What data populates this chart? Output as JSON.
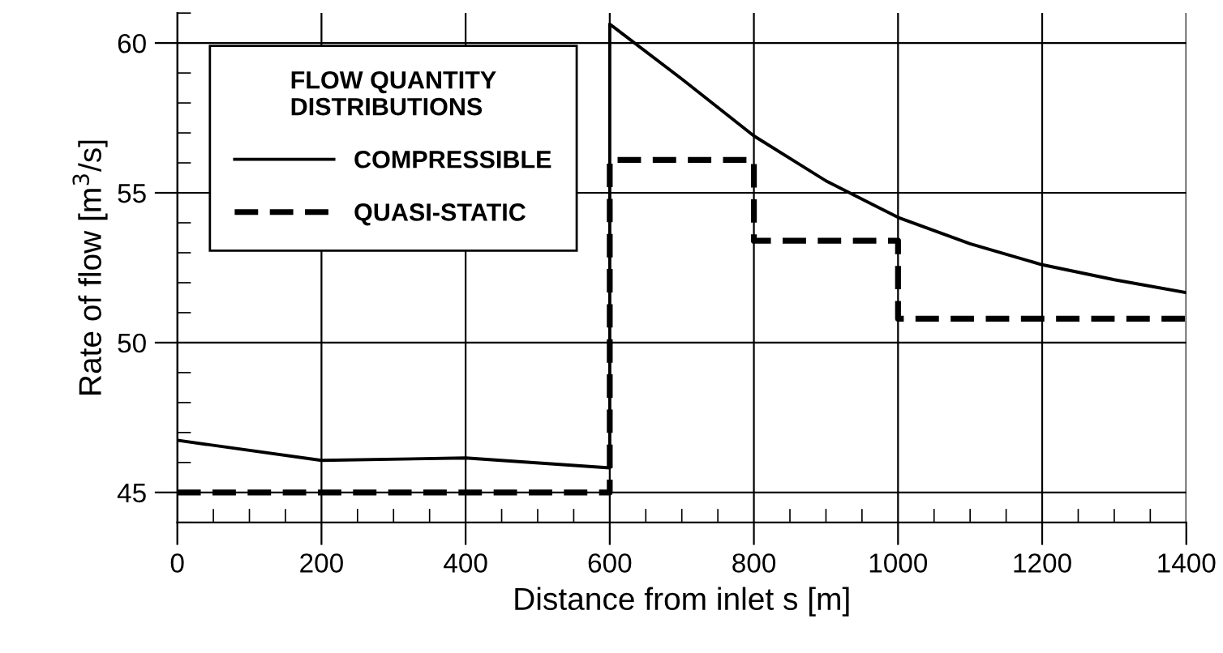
{
  "chart_data": {
    "type": "line",
    "xlabel": "Distance from inlet s [m]",
    "ylabel": "Rate of flow [m$^{3}$/s]",
    "legend_title": "FLOW QUANTITY\nDISTRIBUTIONS",
    "legend": "top left",
    "grid": true,
    "xlim": [
      0,
      1400
    ],
    "xticks": [
      0,
      200,
      400,
      600,
      800,
      1000,
      1200,
      1400
    ],
    "ylim": [
      44,
      61
    ],
    "yticks": [
      45,
      50,
      55,
      60
    ],
    "series": [
      {
        "name": "COMPRESSIBLE",
        "color": "#000000",
        "line_style": "solid",
        "x": [
          0,
          200,
          400,
          600,
          600,
          700,
          800,
          900,
          1000,
          1100,
          1200,
          1300,
          1400
        ],
        "values": [
          46.74,
          46.07,
          46.15,
          45.82,
          60.63,
          58.8,
          56.9,
          55.4,
          54.18,
          53.3,
          52.6,
          52.1,
          51.67
        ]
      },
      {
        "name": "QUASI-STATIC",
        "type": "step",
        "color": "#000000",
        "line_style": "dashed",
        "x": [
          0,
          600,
          800,
          1000,
          1400
        ],
        "values": [
          45,
          56.1,
          53.4,
          50.8,
          50.8
        ]
      }
    ]
  }
}
